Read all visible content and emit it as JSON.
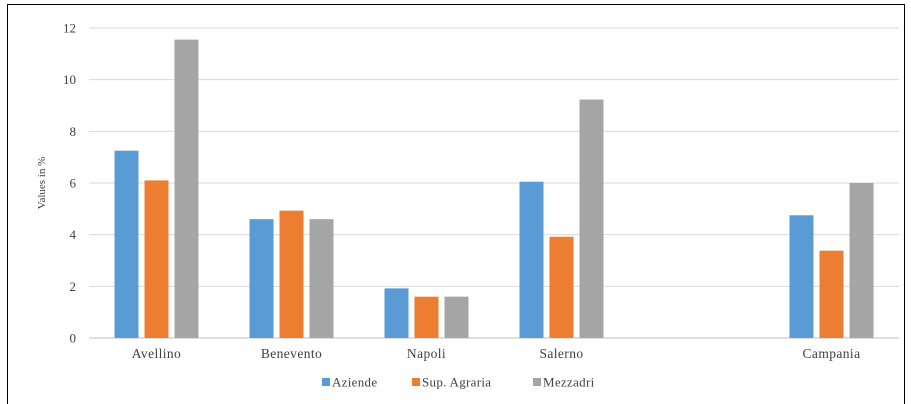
{
  "chart_data": {
    "type": "bar",
    "categories": [
      "Avellino",
      "Benevento",
      "Napoli",
      "Salerno",
      "",
      "Campania"
    ],
    "series": [
      {
        "name": "Aziende",
        "color": "#5b9bd5",
        "values": [
          7.25,
          4.6,
          1.92,
          6.05,
          null,
          4.75
        ]
      },
      {
        "name": "Sup. Agraria",
        "color": "#ed7d31",
        "values": [
          6.1,
          4.93,
          1.6,
          3.92,
          null,
          3.38
        ]
      },
      {
        "name": "Mezzadri",
        "color": "#a5a5a5",
        "values": [
          11.55,
          4.6,
          1.6,
          9.23,
          null,
          6.0
        ]
      }
    ],
    "ylabel": "Values in %",
    "xlabel": "",
    "title": "",
    "ylim": [
      0,
      12
    ],
    "yticks": [
      0,
      2,
      4,
      6,
      8,
      10,
      12
    ],
    "grid": true,
    "legend": "bottom-center"
  }
}
